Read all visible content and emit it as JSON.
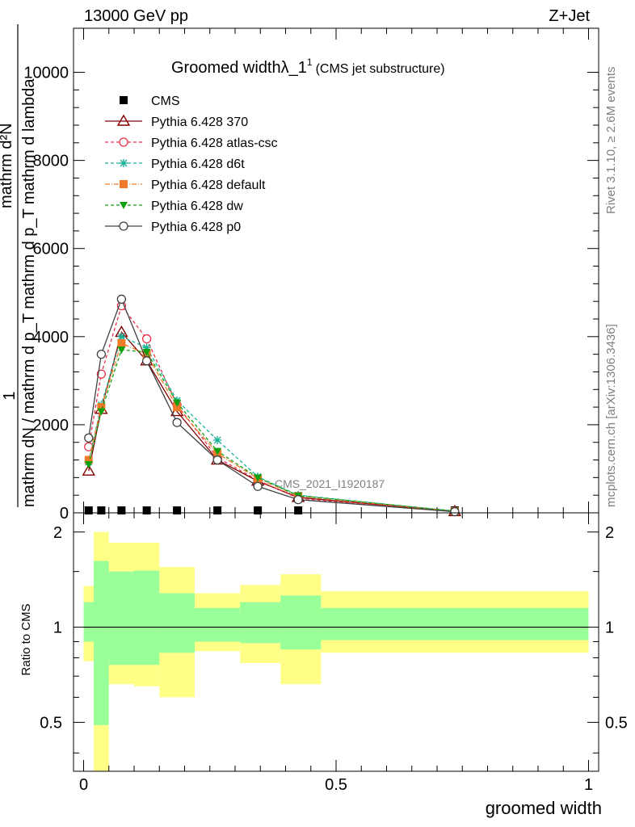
{
  "header": {
    "energy_label": "13000 GeV pp",
    "process_label": "Z+Jet",
    "side_rivet": "Rivet 3.1.10, ≥ 2.6M events",
    "side_mcplots": "mcplots.cern.ch [arXiv:1306.3436]",
    "watermark": "CMS_2021_I1920187"
  },
  "chart_data": [
    {
      "type": "line",
      "title_main": "Groomed widthλ_1",
      "title_sup": "1",
      "title_suffix": "(CMS jet substructure)",
      "ylabel_top": "1",
      "ylabel_a": "mathrm dN / mathrm d p_T mathrm d p_T mathrm d lambda",
      "ylabel_b": "mathrm d²N",
      "ylim": [
        0,
        11000
      ],
      "xlim": [
        -0.02,
        1.02
      ],
      "yticks": [
        0,
        2000,
        4000,
        6000,
        8000,
        10000
      ],
      "ytick_labels": [
        "0",
        "2000",
        "4000",
        "6000",
        "8000",
        "10000"
      ],
      "x": [
        0.01,
        0.035,
        0.075,
        0.125,
        0.185,
        0.265,
        0.345,
        0.425,
        0.735
      ],
      "series": [
        {
          "name": "CMS",
          "color": "#000000",
          "marker": "square",
          "dash": "none",
          "values": [
            0,
            0,
            0,
            0,
            0,
            0,
            0,
            0,
            0
          ]
        },
        {
          "name": "Pythia 6.428 370",
          "color": "#800000",
          "marker": "triangle-open",
          "dash": "solid",
          "values": [
            950,
            2350,
            4100,
            3450,
            2300,
            1200,
            720,
            350,
            30
          ]
        },
        {
          "name": "Pythia 6.428 atlas-csc",
          "color": "#e8304a",
          "marker": "circle-open",
          "dash": "4,3",
          "values": [
            1500,
            3150,
            4700,
            3950,
            2450,
            1250,
            740,
            330,
            30
          ]
        },
        {
          "name": "Pythia 6.428 d6t",
          "color": "#1ab19a",
          "marker": "asterisk",
          "dash": "4,3",
          "values": [
            1150,
            2450,
            4000,
            3750,
            2550,
            1650,
            820,
            400,
            40
          ]
        },
        {
          "name": "Pythia 6.428 default",
          "color": "#f07a28",
          "marker": "square",
          "dash": "6,2,1,2",
          "values": [
            1200,
            2400,
            3850,
            3600,
            2400,
            1350,
            780,
            380,
            35
          ]
        },
        {
          "name": "Pythia 6.428 dw",
          "color": "#10a010",
          "marker": "triangle-down",
          "dash": "4,3",
          "values": [
            1100,
            2300,
            3700,
            3650,
            2500,
            1400,
            800,
            390,
            40
          ]
        },
        {
          "name": "Pythia 6.428 p0",
          "color": "#404040",
          "marker": "circle-open",
          "dash": "solid",
          "values": [
            1700,
            3600,
            4850,
            3450,
            2050,
            1200,
            600,
            300,
            25
          ]
        }
      ]
    },
    {
      "type": "area",
      "ylabel": "Ratio to CMS",
      "xlabel": "groomed width",
      "ylim": [
        0.35,
        2.3
      ],
      "ylog": true,
      "yticks": [
        0.5,
        1,
        2
      ],
      "ytick_labels": [
        "0.5",
        "1",
        "2"
      ],
      "xticks": [
        0,
        0.5,
        1
      ],
      "xtick_labels": [
        "0",
        "0.5",
        "1"
      ],
      "reference": 1,
      "bin_edges": [
        0,
        0.02,
        0.05,
        0.1,
        0.15,
        0.22,
        0.31,
        0.39,
        0.47,
        1.0
      ],
      "band_outer": {
        "color": "#ffff88",
        "lo": [
          0.78,
          0.3,
          0.66,
          0.65,
          0.6,
          0.84,
          0.77,
          0.66,
          0.83
        ],
        "hi": [
          1.35,
          2.0,
          1.85,
          1.85,
          1.55,
          1.28,
          1.36,
          1.47,
          1.3
        ]
      },
      "band_inner": {
        "color": "#99ff99",
        "lo": [
          0.9,
          0.49,
          0.76,
          0.76,
          0.83,
          0.9,
          0.89,
          0.85,
          0.91
        ],
        "hi": [
          1.2,
          1.62,
          1.5,
          1.51,
          1.28,
          1.15,
          1.2,
          1.26,
          1.15
        ]
      }
    }
  ]
}
